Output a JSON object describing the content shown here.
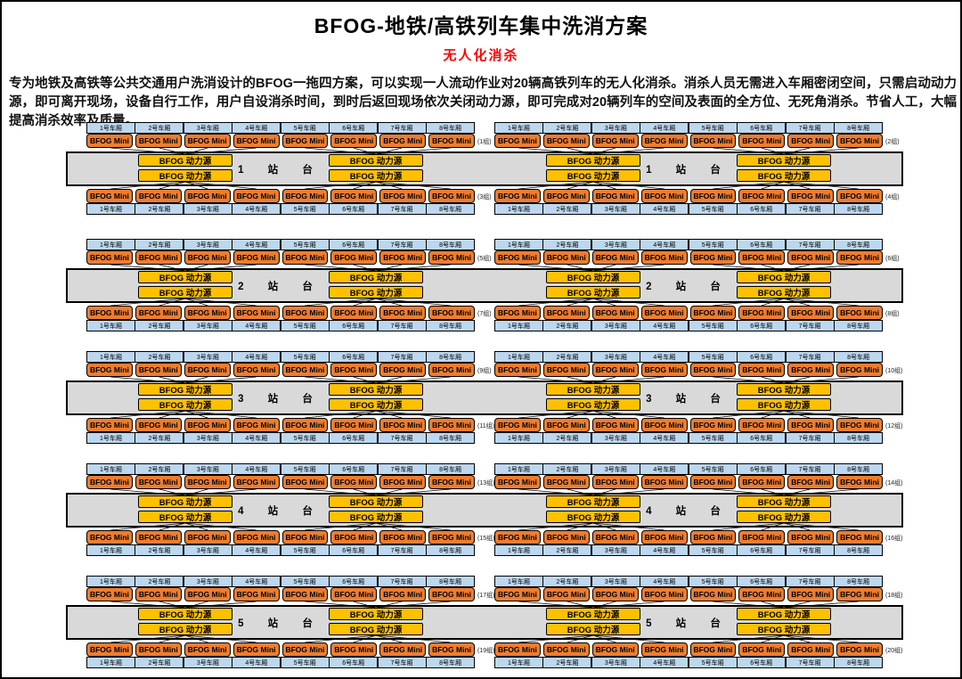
{
  "header": {
    "title": "BFOG-地铁/高铁列车集中洗消方案",
    "subtitle": "无人化消杀",
    "description": "专为地铁及高铁等公共交通用户洗消设计的BFOG一拖四方案，可以实现一人流动作业对20辆高铁列车的无人化消杀。消杀人员无需进入车厢密闭空间，只需启动动力源，即可离开现场，设备自行工作，用户自设消杀时间，到时后返回现场依次关闭动力源，即可完成对20辆列车的空间及表面的全方位、无死角消杀。节省人工，大幅提高消杀效率及质量。"
  },
  "equipment": {
    "mini_label": "BFOG Mini",
    "power_label": "BFOG 动力源"
  },
  "train": {
    "cars": [
      "1号车厢",
      "2号车厢",
      "3号车厢",
      "4号车厢",
      "5号车厢",
      "6号车厢",
      "7号车厢",
      "8号车厢"
    ]
  },
  "platforms": [
    "1 站 台",
    "2 站 台",
    "3 站 台",
    "4 站 台",
    "5 站 台"
  ],
  "groups": [
    "(1组)",
    "(2组)",
    "(3组)",
    "(4组)",
    "(5组)",
    "(6组)",
    "(7组)",
    "(8组)",
    "(9组)",
    "(10组)",
    "(11组)",
    "(12组)",
    "(13组)",
    "(14组)",
    "(15组)",
    "(16组)",
    "(17组)",
    "(18组)",
    "(19组)",
    "(20组)"
  ],
  "colors": {
    "mini_orange": "#ed7d31",
    "car_blue": "#bdd7ee",
    "power_yellow": "#ffc000",
    "platform_gray": "#d9d9d9",
    "subtitle_red": "#ff0000",
    "line_black": "#000000"
  }
}
